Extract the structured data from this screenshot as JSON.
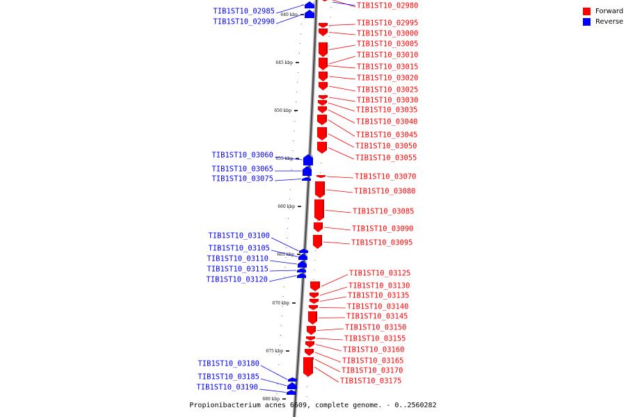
{
  "legend": {
    "forward_label": "Forward",
    "reverse_label": "Reverse",
    "forward_color": "#ff0000",
    "reverse_color": "#0000ff"
  },
  "caption": "Propionibacterium acnes 6609, complete genome. - 0..2560282",
  "scale_unit": "kbp",
  "ticks": [
    "640 kbp",
    "645 kbp",
    "650 kbp",
    "655 kbp",
    "660 kbp",
    "665 kbp",
    "670 kbp",
    "675 kbp",
    "680 kbp"
  ],
  "reverse_genes": [
    "TIB1ST10_02985",
    "TIB1ST10_02990",
    "TIB1ST10_03060",
    "TIB1ST10_03065",
    "TIB1ST10_03075",
    "TIB1ST10_03100",
    "TIB1ST10_03105",
    "TIB1ST10_03110",
    "TIB1ST10_03115",
    "TIB1ST10_03120",
    "TIB1ST10_03180",
    "TIB1ST10_03185",
    "TIB1ST10_03190"
  ],
  "forward_genes": [
    "TIB1ST10_02980",
    "TIB1ST10_02995",
    "TIB1ST10_03000",
    "TIB1ST10_03005",
    "TIB1ST10_03010",
    "TIB1ST10_03015",
    "TIB1ST10_03020",
    "TIB1ST10_03025",
    "TIB1ST10_03030",
    "TIB1ST10_03035",
    "TIB1ST10_03040",
    "TIB1ST10_03045",
    "TIB1ST10_03050",
    "TIB1ST10_03055",
    "TIB1ST10_03070",
    "TIB1ST10_03080",
    "TIB1ST10_03085",
    "TIB1ST10_03090",
    "TIB1ST10_03095",
    "TIB1ST10_03125",
    "TIB1ST10_03130",
    "TIB1ST10_03135",
    "TIB1ST10_03140",
    "TIB1ST10_03145",
    "TIB1ST10_03150",
    "TIB1ST10_03155",
    "TIB1ST10_03160",
    "TIB1ST10_03165",
    "TIB1ST10_03170",
    "TIB1ST10_03175"
  ]
}
